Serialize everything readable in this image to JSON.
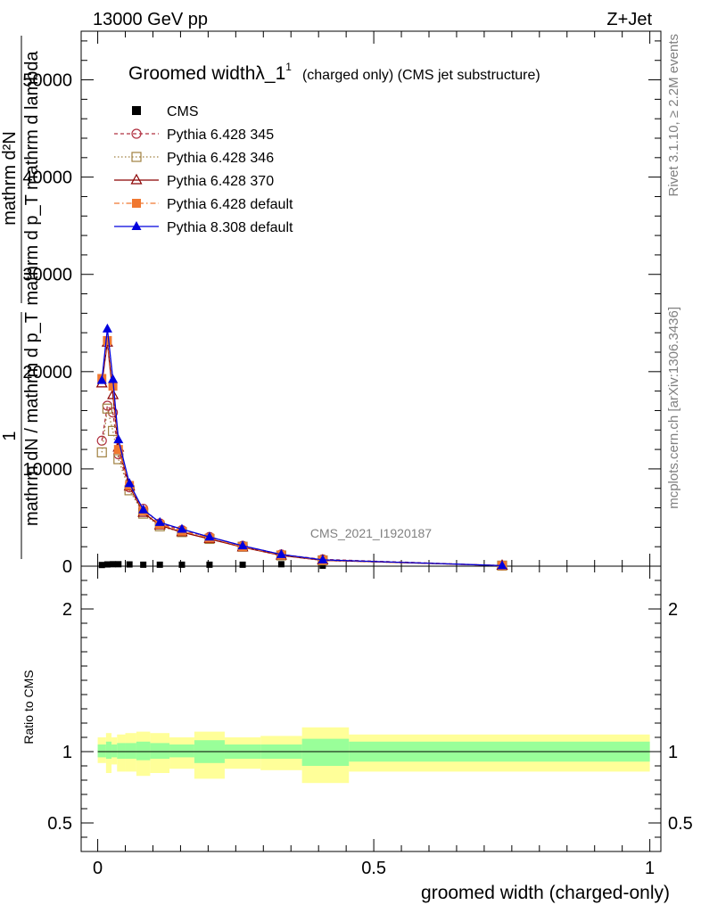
{
  "header": {
    "left": "13000 GeV pp",
    "right": "Z+Jet"
  },
  "side": {
    "rivet": "Rivet 3.1.10, ≥ 2.2M events",
    "mcplots": "mcplots.cern.ch [arXiv:1306.3436]"
  },
  "watermark": "CMS_2021_I1920187",
  "chart_data": [
    {
      "type": "line",
      "title": "Groomed widthλ_1",
      "title_sup": "1",
      "title_suffix": "(charged only) (CMS jet substructure)",
      "xlabel": "groomed width (charged-only)",
      "ylabel_num": "1",
      "ylabel_den": "mathrm dN / mathrm d p_T",
      "ylabel_frac_num": "mathrm d²N",
      "ylabel_frac_den": "mathrm d p_T mathrm d lambda",
      "xlim": [
        -0.03,
        1.02
      ],
      "ylim": [
        0,
        55000
      ],
      "x_ticks": [
        0,
        0.5,
        1
      ],
      "x_tick_labels": [
        "0",
        "0.5",
        "1"
      ],
      "y_ticks": [
        0,
        10000,
        20000,
        30000,
        40000,
        50000
      ],
      "y_tick_labels": [
        "0",
        "10000",
        "20000",
        "30000",
        "40000",
        "50000"
      ],
      "grid": false,
      "legend_position": "top-left",
      "x": [
        0.0075,
        0.0175,
        0.0275,
        0.0375,
        0.0575,
        0.0825,
        0.1125,
        0.1525,
        0.2025,
        0.2625,
        0.3325,
        0.4075,
        0.7325
      ],
      "series": [
        {
          "name": "CMS",
          "color": "#000000",
          "marker": "square-filled",
          "line": "none",
          "values": [
            120,
            180,
            200,
            200,
            180,
            150,
            150,
            150,
            150,
            150,
            200,
            50,
            20
          ]
        },
        {
          "name": "Pythia 6.428 345",
          "color": "#b03040",
          "marker": "circle-open",
          "line": "dashed",
          "values": [
            12900,
            16500,
            15800,
            11500,
            8100,
            5900,
            4400,
            3700,
            3000,
            2100,
            1200,
            700,
            60
          ]
        },
        {
          "name": "Pythia 6.428 346",
          "color": "#a08040",
          "marker": "square-open",
          "line": "dotted",
          "values": [
            11700,
            16200,
            13900,
            11000,
            7800,
            5400,
            4100,
            3500,
            2800,
            2000,
            1100,
            600,
            60
          ]
        },
        {
          "name": "Pythia 6.428 370",
          "color": "#8b0000",
          "marker": "triangle-open",
          "line": "solid",
          "values": [
            18800,
            23000,
            17600,
            12200,
            8200,
            5500,
            4200,
            3500,
            2800,
            1950,
            1100,
            600,
            60
          ]
        },
        {
          "name": "Pythia 6.428 default",
          "color": "#f07830",
          "marker": "square-filled",
          "line": "dashdot",
          "values": [
            19300,
            23200,
            18500,
            12000,
            8300,
            5700,
            4300,
            3600,
            2900,
            2000,
            1150,
            620,
            60
          ]
        },
        {
          "name": "Pythia 8.308 default",
          "color": "#0000dd",
          "marker": "triangle-filled",
          "line": "solid",
          "values": [
            19100,
            24400,
            19200,
            13000,
            8500,
            5800,
            4500,
            3800,
            3000,
            2100,
            1200,
            650,
            60
          ]
        }
      ]
    },
    {
      "type": "area",
      "ylabel": "Ratio to CMS",
      "xlim": [
        -0.03,
        1.02
      ],
      "ylim": [
        0.3,
        2.3
      ],
      "y_ticks": [
        0.5,
        1,
        2
      ],
      "y_tick_labels": [
        "0.5",
        "1",
        "2"
      ],
      "x_ticks": [
        0,
        0.5,
        1
      ],
      "reference_line": 1,
      "bins": [
        {
          "x0": 0.0,
          "x1": 0.015,
          "stat_lo": 0.96,
          "stat_hi": 1.05,
          "tot_lo": 0.92,
          "tot_hi": 1.1
        },
        {
          "x0": 0.015,
          "x1": 0.025,
          "stat_lo": 0.95,
          "stat_hi": 1.07,
          "tot_lo": 0.85,
          "tot_hi": 1.13
        },
        {
          "x0": 0.025,
          "x1": 0.035,
          "stat_lo": 0.96,
          "stat_hi": 1.05,
          "tot_lo": 0.91,
          "tot_hi": 1.1
        },
        {
          "x0": 0.035,
          "x1": 0.05,
          "stat_lo": 0.95,
          "stat_hi": 1.06,
          "tot_lo": 0.86,
          "tot_hi": 1.12
        },
        {
          "x0": 0.05,
          "x1": 0.07,
          "stat_lo": 0.95,
          "stat_hi": 1.06,
          "tot_lo": 0.86,
          "tot_hi": 1.13
        },
        {
          "x0": 0.07,
          "x1": 0.095,
          "stat_lo": 0.94,
          "stat_hi": 1.07,
          "tot_lo": 0.83,
          "tot_hi": 1.14
        },
        {
          "x0": 0.095,
          "x1": 0.13,
          "stat_lo": 0.95,
          "stat_hi": 1.06,
          "tot_lo": 0.85,
          "tot_hi": 1.13
        },
        {
          "x0": 0.13,
          "x1": 0.175,
          "stat_lo": 0.96,
          "stat_hi": 1.05,
          "tot_lo": 0.88,
          "tot_hi": 1.1
        },
        {
          "x0": 0.175,
          "x1": 0.23,
          "stat_lo": 0.92,
          "stat_hi": 1.08,
          "tot_lo": 0.81,
          "tot_hi": 1.14
        },
        {
          "x0": 0.23,
          "x1": 0.295,
          "stat_lo": 0.95,
          "stat_hi": 1.05,
          "tot_lo": 0.88,
          "tot_hi": 1.1
        },
        {
          "x0": 0.295,
          "x1": 0.37,
          "stat_lo": 0.95,
          "stat_hi": 1.05,
          "tot_lo": 0.87,
          "tot_hi": 1.11
        },
        {
          "x0": 0.37,
          "x1": 0.455,
          "stat_lo": 0.9,
          "stat_hi": 1.09,
          "tot_lo": 0.78,
          "tot_hi": 1.17
        },
        {
          "x0": 0.455,
          "x1": 1.0,
          "stat_lo": 0.93,
          "stat_hi": 1.07,
          "tot_lo": 0.86,
          "tot_hi": 1.12
        }
      ]
    }
  ],
  "colors": {
    "stat_band": "#99ff99",
    "total_band": "#ffff99"
  }
}
